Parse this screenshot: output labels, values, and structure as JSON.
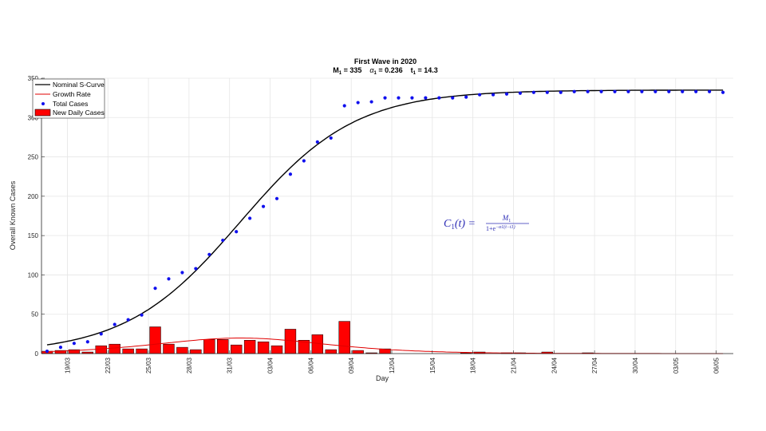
{
  "chart_data": {
    "type": "line",
    "title": "First Wave in 2020",
    "subtitle": {
      "m_label": "M",
      "m_sub": "1",
      "m_value": " = 335",
      "alpha_label": "α",
      "alpha_sub": "1",
      "alpha_value": " = 0.236",
      "t_label": "t",
      "t_sub": "1",
      "t_value": " = 14.3"
    },
    "xlabel": "Day",
    "ylabel": "Overall Known Cases",
    "ylim": [
      0,
      350
    ],
    "yticks": [
      0,
      50,
      100,
      150,
      200,
      250,
      300,
      350
    ],
    "xlim": [
      0,
      50
    ],
    "xticks": [
      {
        "x": 1.5,
        "label": "19/03"
      },
      {
        "x": 4.5,
        "label": "22/03"
      },
      {
        "x": 7.5,
        "label": "25/03"
      },
      {
        "x": 10.5,
        "label": "28/03"
      },
      {
        "x": 13.5,
        "label": "31/03"
      },
      {
        "x": 16.5,
        "label": "03/04"
      },
      {
        "x": 19.5,
        "label": "06/04"
      },
      {
        "x": 22.5,
        "label": "09/04"
      },
      {
        "x": 25.5,
        "label": "12/04"
      },
      {
        "x": 28.5,
        "label": "15/04"
      },
      {
        "x": 31.5,
        "label": "18/04"
      },
      {
        "x": 34.5,
        "label": "21/04"
      },
      {
        "x": 37.5,
        "label": "24/04"
      },
      {
        "x": 40.5,
        "label": "27/04"
      },
      {
        "x": 43.5,
        "label": "30/04"
      },
      {
        "x": 46.5,
        "label": "03/05"
      },
      {
        "x": 49.5,
        "label": "06/05"
      }
    ],
    "grid": true,
    "legend_position": "top-left",
    "colors": {
      "s_curve": "#000000",
      "growth": "#e00000",
      "total": "#1010ee",
      "bars": "#ff0000",
      "formula": "#2b2bb5"
    },
    "model": {
      "M": 335,
      "alpha": 0.236,
      "t1": 14.3
    },
    "series": [
      {
        "name": "Nominal S-Curve",
        "kind": "line"
      },
      {
        "name": "Growth Rate",
        "kind": "line"
      },
      {
        "name": "Total Cases",
        "kind": "scatter",
        "x": [
          0,
          1,
          2,
          3,
          4,
          5,
          6,
          7,
          8,
          9,
          10,
          11,
          12,
          13,
          14,
          15,
          16,
          17,
          18,
          19,
          20,
          21,
          22,
          23,
          24,
          25,
          26,
          27,
          28,
          29,
          30,
          31,
          32,
          33,
          34,
          35,
          36,
          37,
          38,
          39,
          40,
          41,
          42,
          43,
          44,
          45,
          46,
          47,
          48,
          49,
          50
        ],
        "y": [
          3,
          8,
          13,
          15,
          25,
          37,
          43,
          49,
          83,
          95,
          103,
          108,
          126,
          144,
          155,
          172,
          187,
          197,
          228,
          245,
          269,
          274,
          315,
          319,
          320,
          325,
          325,
          325,
          325,
          325,
          325,
          326,
          329,
          329,
          330,
          331,
          332,
          332,
          332,
          333,
          333,
          333,
          333,
          333,
          333,
          333,
          333,
          333,
          333,
          333,
          332
        ]
      },
      {
        "name": "New Daily Cases",
        "kind": "bar",
        "x": [
          0,
          1,
          2,
          3,
          4,
          5,
          6,
          7,
          8,
          9,
          10,
          11,
          12,
          13,
          14,
          15,
          16,
          17,
          18,
          19,
          20,
          21,
          22,
          23,
          24,
          25,
          26,
          27,
          28,
          29,
          30,
          31,
          32,
          33,
          34,
          35,
          36,
          37,
          38,
          39,
          40,
          41,
          42,
          43,
          44,
          45,
          46,
          47,
          48,
          49,
          50
        ],
        "y": [
          3,
          4,
          5,
          2,
          10,
          12,
          6,
          6,
          34,
          12,
          8,
          5,
          18,
          18,
          11,
          17,
          15,
          10,
          31,
          17,
          24,
          5,
          41,
          4,
          1,
          6,
          0,
          0,
          0,
          0,
          0,
          1,
          2,
          0,
          1,
          1,
          0,
          2,
          0,
          0,
          1,
          0,
          0,
          0,
          0,
          0,
          0,
          0,
          0,
          0,
          0
        ]
      }
    ],
    "annotation": {
      "lhs": "C",
      "lhs_sub": "1",
      "lhs_arg": "(t) =",
      "numerator": "M",
      "numerator_sub": "1",
      "denominator": "1+e",
      "exponent": "−α1(t−t1)"
    }
  }
}
